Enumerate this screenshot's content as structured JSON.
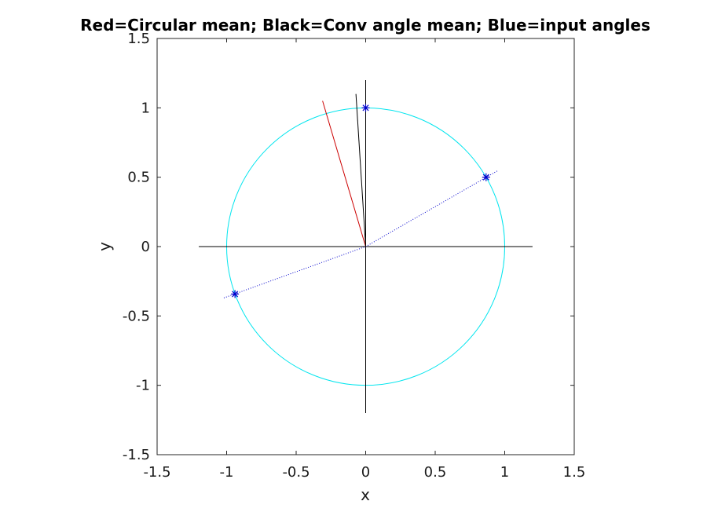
{
  "chart_data": {
    "type": "line",
    "title": "Red=Circular mean; Black=Conv angle mean; Blue=input angles",
    "xlabel": "x",
    "ylabel": "y",
    "xlim": [
      -1.5,
      1.5
    ],
    "ylim": [
      -1.5,
      1.5
    ],
    "xticks": [
      -1.5,
      -1,
      -0.5,
      0,
      0.5,
      1,
      1.5
    ],
    "yticks": [
      -1.5,
      -1,
      -0.5,
      0,
      0.5,
      1,
      1.5
    ],
    "xtick_labels": [
      "-1.5",
      "-1",
      "-0.5",
      "0",
      "0.5",
      "1",
      "1.5"
    ],
    "ytick_labels": [
      "-1.5",
      "-1",
      "-0.5",
      "0",
      "0.5",
      "1",
      "1.5"
    ],
    "grid": false,
    "aspect": "equal",
    "reference_axes": {
      "x": [
        -1.2,
        1.2
      ],
      "y": [
        -1.2,
        1.2
      ],
      "color": "#000000"
    },
    "unit_circle": {
      "center": [
        0,
        0
      ],
      "radius": 1,
      "color": "#00e5ee"
    },
    "input_points": {
      "color": "#0000cc",
      "marker": "asterisk",
      "points": [
        {
          "x": 0,
          "y": 1
        },
        {
          "x": 0.866,
          "y": 0.5
        },
        {
          "x": -0.94,
          "y": -0.342
        }
      ]
    },
    "series": [
      {
        "color": "#0000cc",
        "style": "dotted",
        "points": [
          [
            -1.02,
            -0.37
          ],
          [
            0,
            0
          ]
        ]
      },
      {
        "color": "#0000cc",
        "style": "dotted",
        "points": [
          [
            0,
            0
          ],
          [
            0.955,
            0.55
          ]
        ]
      },
      {
        "color": "#cc0000",
        "style": "solid",
        "points": [
          [
            0,
            0
          ],
          [
            -0.31,
            1.05
          ]
        ]
      },
      {
        "color": "#000000",
        "style": "solid",
        "points": [
          [
            0,
            0
          ],
          [
            -0.07,
            1.1
          ]
        ]
      }
    ]
  }
}
